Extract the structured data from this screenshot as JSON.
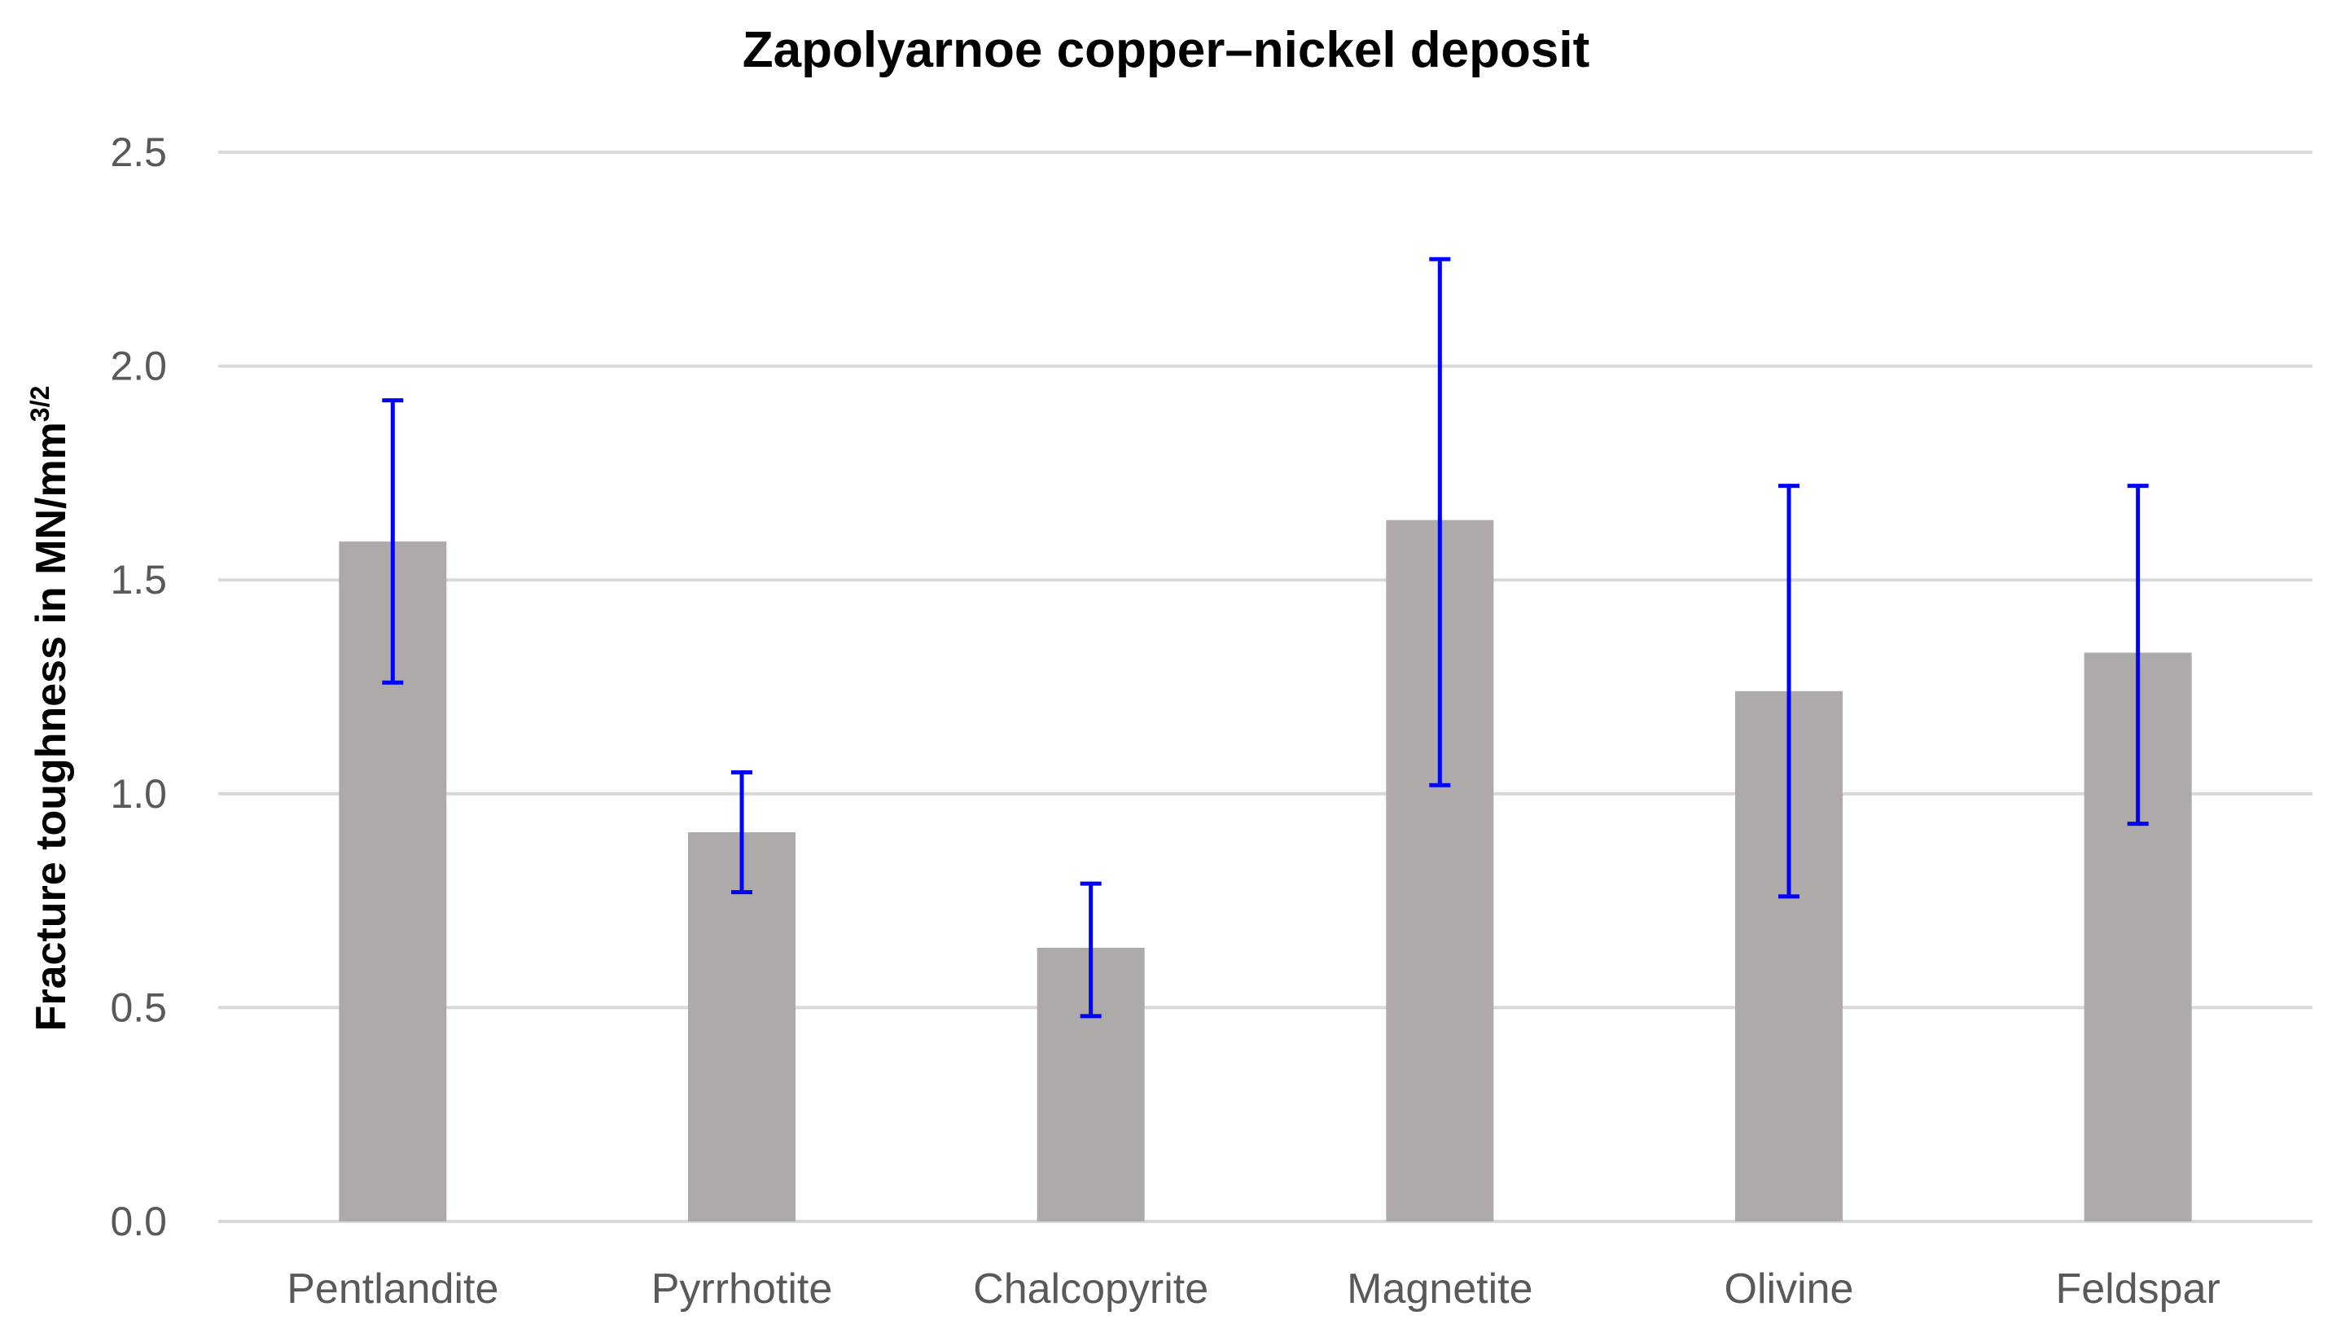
{
  "chart_data": {
    "type": "bar",
    "title": "Zapolyarnoe copper–nickel deposit",
    "ylabel": {
      "text": "Fracture toughness  in MN/mm",
      "superscript": "3/2"
    },
    "xlabel": "",
    "categories": [
      "Pentlandite",
      "Pyrrhotite",
      "Chalcopyrite",
      "Magnetite",
      "Olivine",
      "Feldspar"
    ],
    "values": [
      1.59,
      0.91,
      0.64,
      1.64,
      1.24,
      1.33
    ],
    "error_upper": [
      1.92,
      1.05,
      0.79,
      2.25,
      1.72,
      1.72
    ],
    "error_lower": [
      1.26,
      0.77,
      0.48,
      1.02,
      0.76,
      0.93
    ],
    "ylim": [
      0,
      2.5
    ],
    "yticks": [
      "0.0",
      "0.5",
      "1.0",
      "1.5",
      "2.0",
      "2.5"
    ],
    "ytick_values": [
      0,
      0.5,
      1.0,
      1.5,
      2.0,
      2.5
    ],
    "grid": true,
    "legend": "none",
    "colors": {
      "bar": "#aeaaaa",
      "error_bar": "#0000ff",
      "grid": "#d9d9d9",
      "tick_label": "#595959"
    }
  }
}
